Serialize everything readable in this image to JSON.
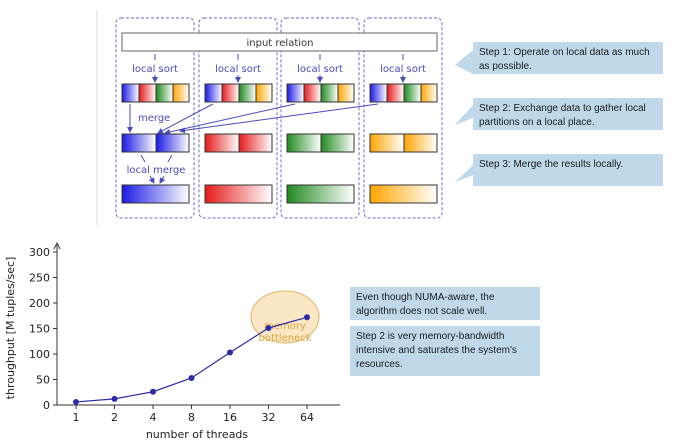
{
  "diagram": {
    "input_relation": "input relation",
    "local_sort": "local sort",
    "merge": "merge",
    "local_merge": "local merge",
    "colors": {
      "blue": "#1a1ae6",
      "red": "#e61a1a",
      "green": "#1f8a1f",
      "orange": "#ffa500",
      "frame": "#6a6ad0"
    }
  },
  "callouts": [
    {
      "text": "Step 1: Operate on local data as much as possible."
    },
    {
      "text": "Step 2: Exchange data to gather local partitions on a local place."
    },
    {
      "text": "Step 3: Merge the results locally."
    },
    {
      "text": "Even though NUMA-aware, the algorithm does not scale well."
    },
    {
      "text": "Step 2 is very memory-bandwidth intensive and saturates the system's resources."
    }
  ],
  "chart_data": {
    "type": "line",
    "x": [
      "1",
      "2",
      "4",
      "8",
      "16",
      "32",
      "64"
    ],
    "series": [
      {
        "values": [
          6,
          12,
          26,
          53,
          103,
          151,
          172
        ]
      }
    ],
    "xlabel": "number of threads",
    "ylabel": "throughput [M tuples/sec]",
    "ylim": [
      0,
      300
    ],
    "yticks": [
      0,
      50,
      100,
      150,
      200,
      250,
      300
    ],
    "annotation": "memory bottleneck",
    "color": "#2b2ba8",
    "annotation_color": "#d9a441"
  }
}
